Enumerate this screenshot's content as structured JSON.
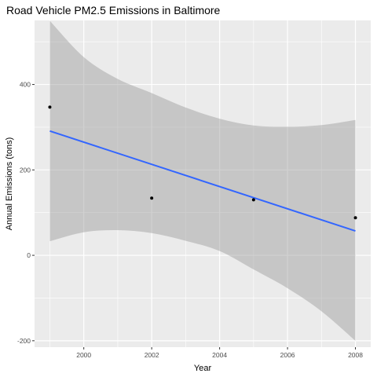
{
  "chart_data": {
    "type": "scatter",
    "title": "Road Vehicle PM2.5 Emissions in Baltimore",
    "xlabel": "Year",
    "ylabel": "Annual Emissions (tons)",
    "xlim": [
      1998.55,
      2008.45
    ],
    "ylim": [
      -215,
      550
    ],
    "x_ticks": [
      2000,
      2002,
      2004,
      2006,
      2008
    ],
    "y_ticks": [
      -200,
      0,
      200,
      400
    ],
    "points": [
      {
        "x": 1999,
        "y": 347
      },
      {
        "x": 2002,
        "y": 134
      },
      {
        "x": 2005,
        "y": 130
      },
      {
        "x": 2008,
        "y": 88
      }
    ],
    "trend": {
      "method": "lm",
      "from": {
        "x": 1999,
        "y": 291
      },
      "to": {
        "x": 2008,
        "y": 57
      },
      "color": "#3366ff"
    },
    "confidence_band": {
      "color": "#999999",
      "opacity": 0.45,
      "upper": [
        [
          1999,
          549
        ],
        [
          2000,
          464
        ],
        [
          2001,
          413
        ],
        [
          2002,
          380
        ],
        [
          2003,
          346
        ],
        [
          2004,
          320
        ],
        [
          2005,
          304
        ],
        [
          2006,
          301
        ],
        [
          2007,
          305
        ],
        [
          2008,
          317
        ]
      ],
      "lower": [
        [
          1999,
          33
        ],
        [
          2000,
          54
        ],
        [
          2001,
          59
        ],
        [
          2002,
          52
        ],
        [
          2003,
          34
        ],
        [
          2004,
          10
        ],
        [
          2005,
          -33
        ],
        [
          2006,
          -77
        ],
        [
          2007,
          -131
        ],
        [
          2008,
          -200
        ]
      ]
    },
    "panel_background": "#ebebeb",
    "grid": true,
    "grid_color": "#ffffff",
    "point_color": "#000000"
  }
}
